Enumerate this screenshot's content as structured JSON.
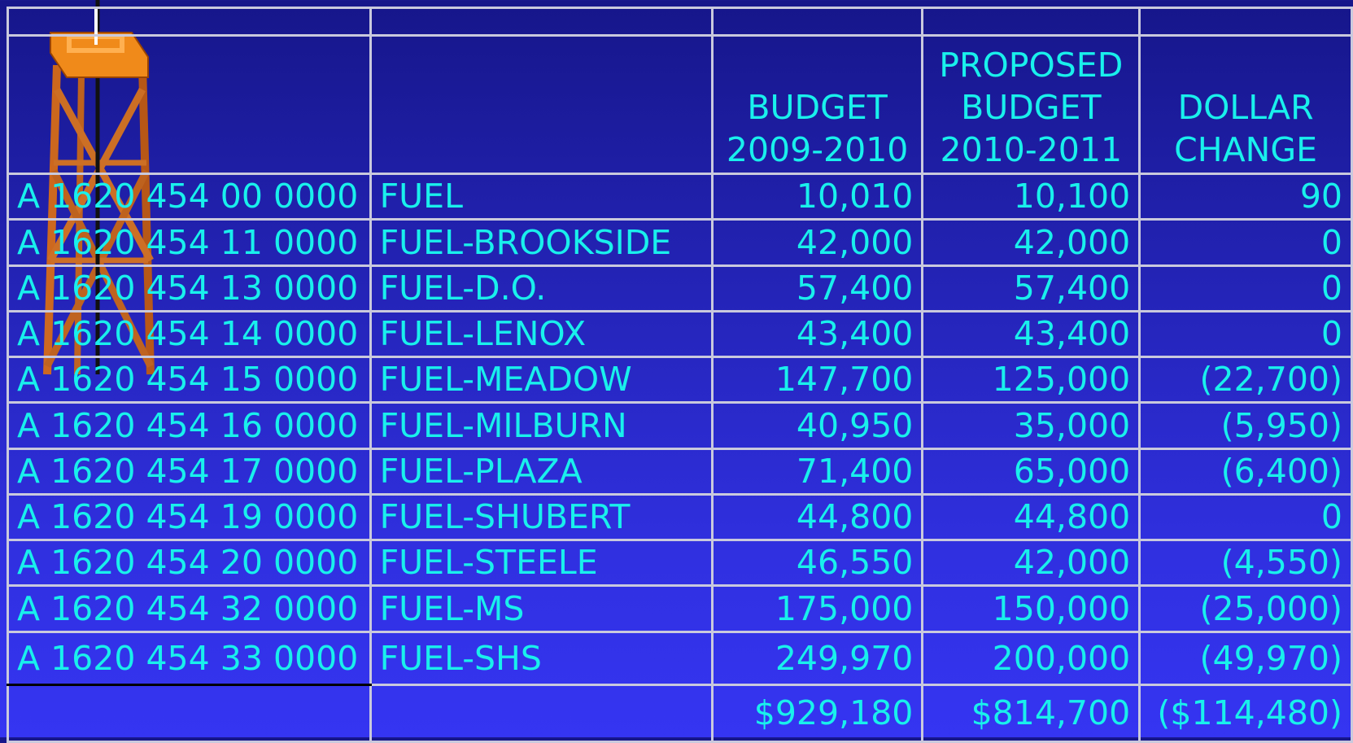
{
  "table": {
    "header": [
      {
        "lines": [
          "BUDGET",
          "2009-2010"
        ]
      },
      {
        "lines": [
          "PROPOSED",
          "BUDGET",
          "2010-2011"
        ]
      },
      {
        "lines": [
          "DOLLAR",
          "CHANGE"
        ]
      }
    ],
    "rows": [
      [
        "A 1620 454 00 0000",
        "FUEL",
        "10,010",
        "10,100",
        "90"
      ],
      [
        "A 1620 454 11 0000",
        "FUEL-BROOKSIDE",
        "42,000",
        "42,000",
        "0"
      ],
      [
        "A 1620 454 13 0000",
        "FUEL-D.O.",
        "57,400",
        "57,400",
        "0"
      ],
      [
        "A 1620 454 14 0000",
        "FUEL-LENOX",
        "43,400",
        "43,400",
        "0"
      ],
      [
        "A 1620 454 15 0000",
        "FUEL-MEADOW",
        "147,700",
        "125,000",
        "(22,700)"
      ],
      [
        "A 1620 454 16 0000",
        "FUEL-MILBURN",
        "40,950",
        "35,000",
        "(5,950)"
      ],
      [
        "A 1620 454 17 0000",
        "FUEL-PLAZA",
        "71,400",
        "65,000",
        "(6,400)"
      ],
      [
        "A 1620 454 19 0000",
        "FUEL-SHUBERT",
        "44,800",
        "44,800",
        "0"
      ],
      [
        "A 1620 454 20 0000",
        "FUEL-STEELE",
        "46,550",
        "42,000",
        "(4,550)"
      ],
      [
        "A 1620 454 32 0000",
        "FUEL-MS",
        "175,000",
        "150,000",
        "(25,000)"
      ],
      [
        "A 1620 454 33 0000",
        "FUEL-SHS",
        "249,970",
        "200,000",
        "(49,970)"
      ]
    ],
    "totals": [
      "$929,180",
      "$814,700",
      "($114,480)"
    ]
  }
}
